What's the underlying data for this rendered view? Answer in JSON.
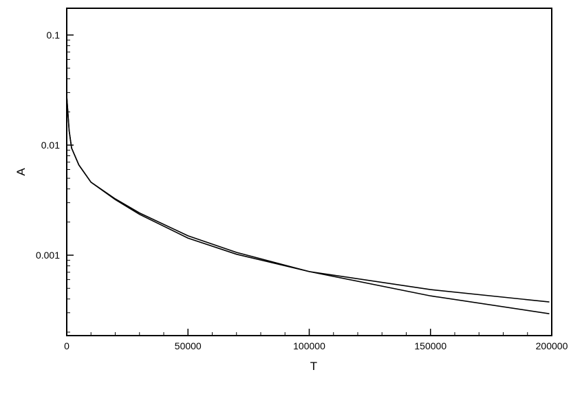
{
  "chart_data": {
    "type": "line",
    "x_label": "T",
    "y_label": "A",
    "log_y": true,
    "x": [
      0,
      1000,
      2000,
      5000,
      10000,
      20000,
      30000,
      50000,
      70000,
      100000,
      150000,
      199000
    ],
    "series": [
      {
        "color": "#000000",
        "values": [
          0.028,
          0.0135,
          0.0094,
          0.0066,
          0.0046,
          0.0032,
          0.00235,
          0.00143,
          0.00102,
          0.00071,
          0.000487,
          0.000376
        ]
      },
      {
        "color": "#000000",
        "values": [
          0.028,
          0.0135,
          0.0094,
          0.0066,
          0.0046,
          0.00325,
          0.00242,
          0.0015,
          0.00106,
          0.00071,
          0.000427,
          0.000294
        ]
      }
    ],
    "xlim": [
      0,
      200000
    ],
    "xticks": [
      0,
      50000,
      100000,
      150000,
      200000
    ],
    "ylim": [
      0.000186,
      0.175
    ],
    "yticks": [
      0.001,
      0.01,
      0.1
    ]
  }
}
